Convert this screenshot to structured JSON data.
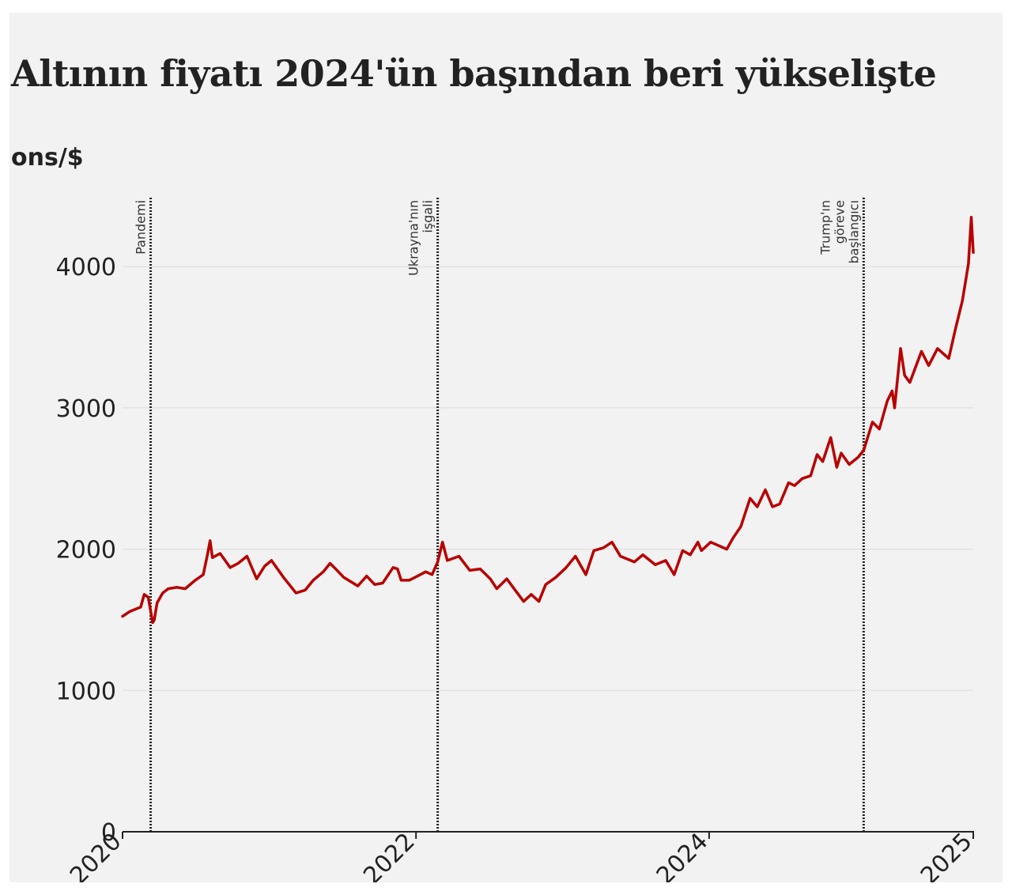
{
  "title": "Altının fiyatı 2024'ün başından beri yükselişte",
  "unit": "ons/$",
  "colors": {
    "line": "#b80000",
    "grid": "#dcdcdc",
    "axis": "#222222",
    "background": "#f2f2f2"
  },
  "chart_data": {
    "type": "line",
    "title": "Altının fiyatı 2024'ün başından beri yükselişte",
    "ylabel": "ons/$",
    "xlabel": "",
    "ylim": [
      0,
      4400
    ],
    "xlim": [
      "2020-01-01",
      "2025-10-20"
    ],
    "grid": "horizontal",
    "y_ticks": [
      "0",
      "1000",
      "2000",
      "3000",
      "4000"
    ],
    "x_ticks": [
      {
        "date": "2020-01-01",
        "label": "2020"
      },
      {
        "date": "2022-01-01",
        "label": "2022"
      },
      {
        "date": "2024-01-01",
        "label": "2024"
      },
      {
        "date": "2025-10-20",
        "label": "2025"
      }
    ],
    "events": [
      {
        "date": "2020-03-11",
        "lines": [
          "Pandemi"
        ]
      },
      {
        "date": "2022-02-24",
        "lines": [
          "Ukrayna'nın",
          "işgali"
        ]
      },
      {
        "date": "2025-01-20",
        "lines": [
          "Trump'ın",
          "göreve",
          "başlangıcı"
        ]
      }
    ],
    "series": [
      {
        "x": [
          "2020-01-01",
          "2020-01-20",
          "2020-02-15",
          "2020-02-24",
          "2020-03-05",
          "2020-03-16",
          "2020-03-20",
          "2020-03-27",
          "2020-04-10",
          "2020-04-24",
          "2020-05-15",
          "2020-06-05",
          "2020-06-30",
          "2020-07-20",
          "2020-07-31",
          "2020-08-06",
          "2020-08-12",
          "2020-08-31",
          "2020-09-25",
          "2020-10-15",
          "2020-11-06",
          "2020-11-30",
          "2020-12-20",
          "2021-01-06",
          "2021-02-05",
          "2021-03-08",
          "2021-03-31",
          "2021-04-20",
          "2021-05-15",
          "2021-06-01",
          "2021-06-15",
          "2021-07-05",
          "2021-08-09",
          "2021-08-31",
          "2021-09-20",
          "2021-10-10",
          "2021-11-05",
          "2021-11-16",
          "2021-11-25",
          "2021-12-15",
          "2022-01-05",
          "2022-01-25",
          "2022-02-10",
          "2022-02-24",
          "2022-03-08",
          "2022-03-20",
          "2022-04-18",
          "2022-05-15",
          "2022-06-10",
          "2022-07-05",
          "2022-07-21",
          "2022-08-15",
          "2022-09-05",
          "2022-09-26",
          "2022-10-15",
          "2022-11-03",
          "2022-11-20",
          "2022-12-15",
          "2023-01-10",
          "2023-02-02",
          "2023-02-28",
          "2023-03-20",
          "2023-04-13",
          "2023-05-04",
          "2023-05-25",
          "2023-06-29",
          "2023-07-20",
          "2023-08-20",
          "2023-09-15",
          "2023-10-06",
          "2023-10-27",
          "2023-11-15",
          "2023-12-04",
          "2023-12-13",
          "2024-01-05",
          "2024-02-14",
          "2024-03-01",
          "2024-03-20",
          "2024-04-12",
          "2024-04-30",
          "2024-05-20",
          "2024-06-07",
          "2024-06-25",
          "2024-07-17",
          "2024-08-01",
          "2024-08-20",
          "2024-09-10",
          "2024-09-26",
          "2024-10-10",
          "2024-10-30",
          "2024-11-14",
          "2024-11-25",
          "2024-12-15",
          "2025-01-06",
          "2025-01-20",
          "2025-02-11",
          "2025-02-28",
          "2025-03-20",
          "2025-04-01",
          "2025-04-07",
          "2025-04-22",
          "2025-05-02",
          "2025-05-15",
          "2025-06-13",
          "2025-07-01",
          "2025-07-23",
          "2025-08-20",
          "2025-09-05",
          "2025-09-23",
          "2025-10-08",
          "2025-10-15",
          "2025-10-20"
        ],
        "y": [
          1525,
          1560,
          1590,
          1680,
          1660,
          1480,
          1500,
          1620,
          1690,
          1720,
          1730,
          1720,
          1780,
          1820,
          1970,
          2060,
          1940,
          1970,
          1870,
          1900,
          1950,
          1790,
          1880,
          1920,
          1800,
          1690,
          1710,
          1780,
          1840,
          1900,
          1860,
          1800,
          1740,
          1810,
          1750,
          1760,
          1870,
          1860,
          1780,
          1780,
          1810,
          1840,
          1820,
          1910,
          2050,
          1920,
          1950,
          1850,
          1860,
          1790,
          1720,
          1790,
          1710,
          1630,
          1680,
          1630,
          1750,
          1800,
          1870,
          1950,
          1820,
          1990,
          2010,
          2050,
          1950,
          1910,
          1960,
          1890,
          1920,
          1820,
          1990,
          1960,
          2050,
          1990,
          2050,
          2000,
          2080,
          2160,
          2360,
          2300,
          2420,
          2300,
          2320,
          2470,
          2450,
          2500,
          2520,
          2670,
          2620,
          2790,
          2580,
          2680,
          2600,
          2650,
          2700,
          2900,
          2850,
          3050,
          3120,
          3000,
          3420,
          3230,
          3180,
          3400,
          3300,
          3420,
          3350,
          3550,
          3760,
          4020,
          4350,
          4100
        ]
      }
    ]
  }
}
